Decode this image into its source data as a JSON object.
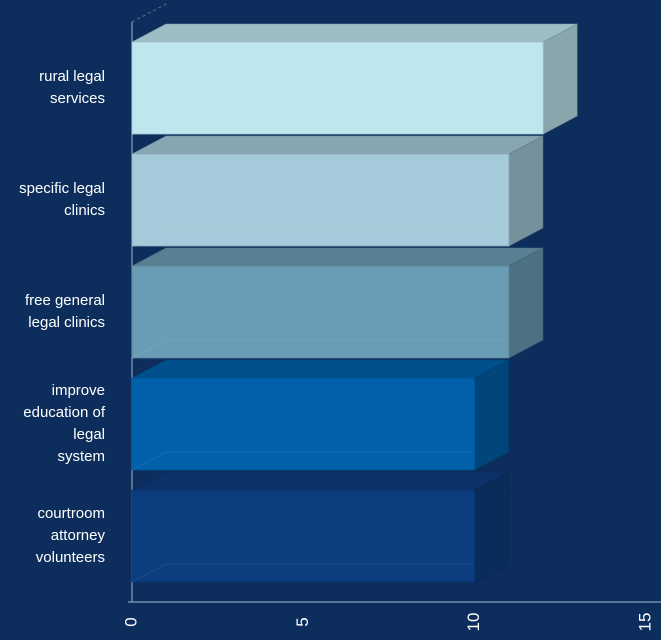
{
  "chart_data": {
    "type": "bar",
    "orientation": "horizontal",
    "style": "3d",
    "title": "",
    "xlabel": "",
    "ylabel": "",
    "categories": [
      [
        "rural legal",
        "services"
      ],
      [
        "specific legal",
        "clinics"
      ],
      [
        "free general",
        "legal clinics"
      ],
      [
        "improve",
        "education of",
        "legal",
        "system"
      ],
      [
        "courtroom",
        "attorney",
        "volunteers"
      ]
    ],
    "values": [
      12,
      11,
      11,
      10,
      10
    ],
    "colors": [
      "#bde6ee",
      "#a5cad9",
      "#6b9cb6",
      "#0061aa",
      "#0c3d7f"
    ],
    "xlim": [
      0,
      15
    ],
    "xticks": [
      "0",
      "5",
      "10",
      "15"
    ],
    "background": "#0d2e5c",
    "axis_color": "#8aa0bc",
    "grid": false,
    "legend": "none"
  }
}
